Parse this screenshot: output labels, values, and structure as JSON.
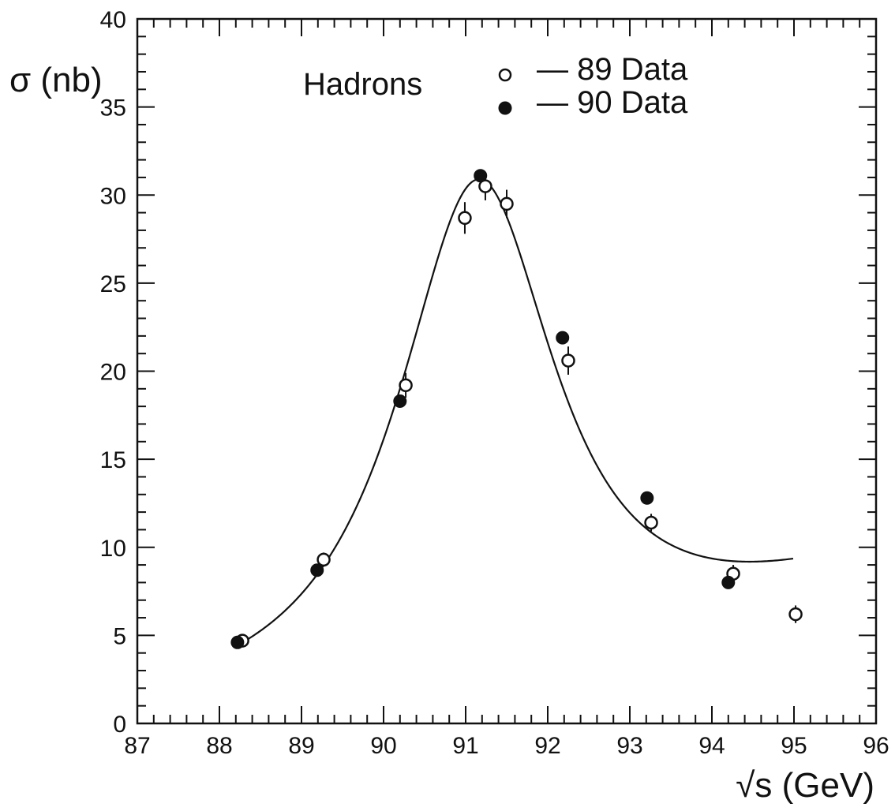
{
  "chart_data": {
    "type": "scatter",
    "title": "",
    "xlabel": "√s (GeV)",
    "ylabel": "σ (nb)",
    "xlim": [
      87,
      96
    ],
    "ylim": [
      0,
      40
    ],
    "x_ticks": [
      87,
      88,
      89,
      90,
      91,
      92,
      93,
      94,
      95,
      96
    ],
    "y_ticks": [
      0,
      5,
      10,
      15,
      20,
      25,
      30,
      35,
      40
    ],
    "grid": false,
    "legend": {
      "title": "Hadrons",
      "placement": "top-center"
    },
    "series": [
      {
        "name": "— 89 Data",
        "marker": "open-circle",
        "points": [
          {
            "x": 88.28,
            "y": 4.7,
            "err": 0.3
          },
          {
            "x": 89.27,
            "y": 9.3,
            "err": 0.4
          },
          {
            "x": 90.27,
            "y": 19.2,
            "err": 0.7
          },
          {
            "x": 90.99,
            "y": 28.7,
            "err": 0.9
          },
          {
            "x": 91.24,
            "y": 30.5,
            "err": 0.8
          },
          {
            "x": 91.5,
            "y": 29.5,
            "err": 0.8
          },
          {
            "x": 92.25,
            "y": 20.6,
            "err": 0.8
          },
          {
            "x": 93.26,
            "y": 11.4,
            "err": 0.5
          },
          {
            "x": 94.26,
            "y": 8.5,
            "err": 0.5
          },
          {
            "x": 95.02,
            "y": 6.2,
            "err": 0.5
          }
        ]
      },
      {
        "name": "— 90 Data",
        "marker": "filled-circle",
        "points": [
          {
            "x": 88.22,
            "y": 4.6,
            "err": 0.1
          },
          {
            "x": 89.19,
            "y": 8.7,
            "err": 0.15
          },
          {
            "x": 90.2,
            "y": 18.3,
            "err": 0.2
          },
          {
            "x": 91.18,
            "y": 31.1,
            "err": 0.2
          },
          {
            "x": 92.18,
            "y": 21.9,
            "err": 0.2
          },
          {
            "x": 93.21,
            "y": 12.8,
            "err": 0.2
          },
          {
            "x": 94.2,
            "y": 8.0,
            "err": 0.2
          }
        ]
      }
    ],
    "fit_curve": {
      "type": "breit-wigner",
      "peak_x": 91.2,
      "peak_y": 30.9,
      "range": [
        88.25,
        95.0
      ]
    },
    "colors": {
      "ink": "#111111",
      "background": "#ffffff"
    }
  }
}
